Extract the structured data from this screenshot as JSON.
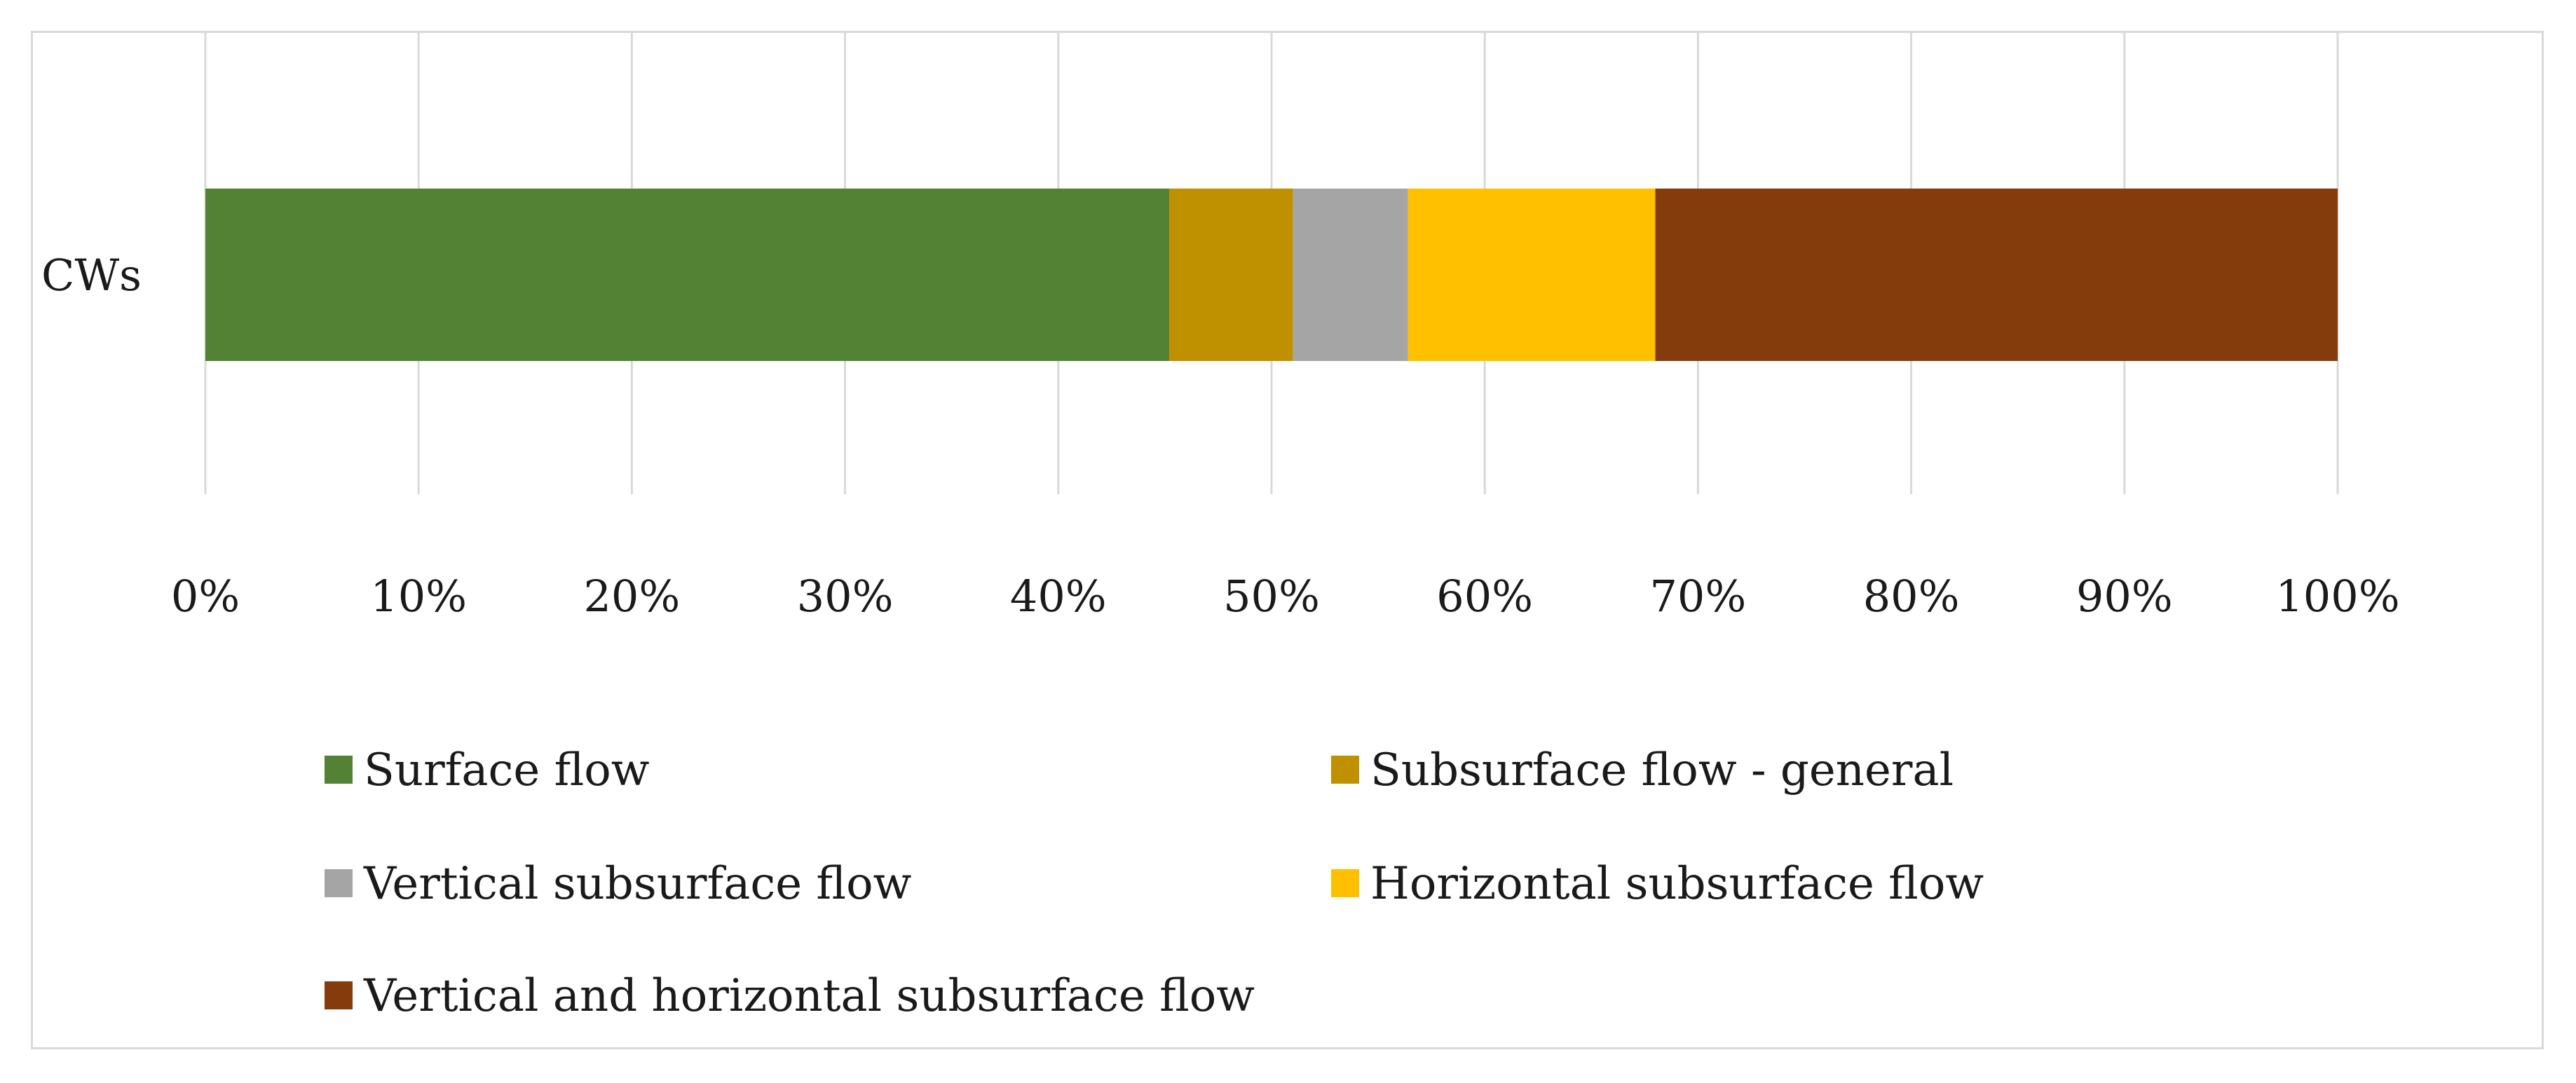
{
  "chart_data": {
    "type": "bar",
    "orientation": "horizontal",
    "stacked": "100%",
    "categories": [
      "CWs"
    ],
    "series": [
      {
        "name": "Surface flow",
        "color": "#548235",
        "values": [
          45.2
        ]
      },
      {
        "name": "Subsurface flow - general",
        "color": "#bf9000",
        "values": [
          5.8
        ]
      },
      {
        "name": "Vertical subsurface flow",
        "color": "#a5a5a5",
        "values": [
          5.4
        ]
      },
      {
        "name": "Horizontal subsurface flow",
        "color": "#ffc000",
        "values": [
          11.6
        ]
      },
      {
        "name": "Vertical and horizontal subsurface flow",
        "color": "#843c0c",
        "values": [
          32.0
        ]
      }
    ],
    "xlim": [
      0,
      100
    ],
    "xticks": [
      0,
      10,
      20,
      30,
      40,
      50,
      60,
      70,
      80,
      90,
      100
    ],
    "xtick_labels": [
      "0%",
      "10%",
      "20%",
      "30%",
      "40%",
      "50%",
      "60%",
      "70%",
      "80%",
      "90%",
      "100%"
    ],
    "grid": true,
    "legend_position": "bottom",
    "title": "",
    "xlabel": "",
    "ylabel": ""
  }
}
